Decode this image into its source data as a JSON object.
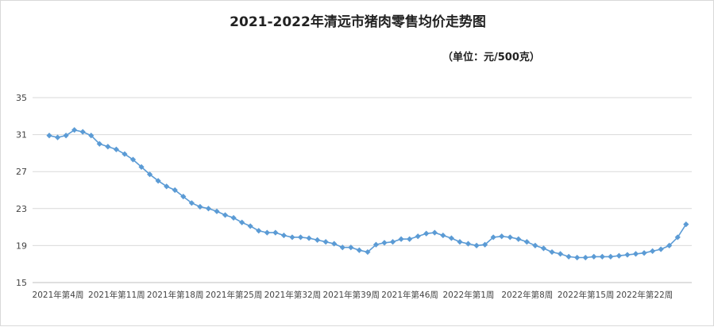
{
  "chart_data": {
    "type": "line",
    "title": "2021-2022年清远市猪肉零售均价走势图",
    "subtitle": "（单位：元/500克）",
    "xlabel": "",
    "ylabel": "",
    "ylim": [
      15,
      35
    ],
    "yticks": [
      "15",
      "19",
      "23",
      "27",
      "31",
      "35"
    ],
    "grid": true,
    "legend": "none",
    "line_color": "#5b9bd5",
    "marker_color": "#5b9bd5",
    "marker": "diamond",
    "x_tick_labels": [
      {
        "index": 0,
        "label": "2021年第4周"
      },
      {
        "index": 7,
        "label": "2021年第11周"
      },
      {
        "index": 14,
        "label": "2021年第18周"
      },
      {
        "index": 21,
        "label": "2021年第25周"
      },
      {
        "index": 28,
        "label": "2021年第32周"
      },
      {
        "index": 35,
        "label": "2021年第39周"
      },
      {
        "index": 42,
        "label": "2021年第46周"
      },
      {
        "index": 49,
        "label": "2022年第1周"
      },
      {
        "index": 56,
        "label": "2022年第8周"
      },
      {
        "index": 63,
        "label": "2022年第15周"
      },
      {
        "index": 70,
        "label": "2022年第22周"
      }
    ],
    "values": [
      30.9,
      30.7,
      30.9,
      31.5,
      31.3,
      30.9,
      30.0,
      29.7,
      29.4,
      28.9,
      28.3,
      27.5,
      26.7,
      26.0,
      25.4,
      25.0,
      24.3,
      23.6,
      23.2,
      23.0,
      22.7,
      22.3,
      22.0,
      21.5,
      21.1,
      20.6,
      20.4,
      20.4,
      20.1,
      19.9,
      19.9,
      19.8,
      19.6,
      19.4,
      19.2,
      18.8,
      18.8,
      18.5,
      18.3,
      19.1,
      19.3,
      19.4,
      19.7,
      19.7,
      20.0,
      20.3,
      20.4,
      20.1,
      19.8,
      19.4,
      19.2,
      19.0,
      19.1,
      19.9,
      20.0,
      19.9,
      19.7,
      19.4,
      19.0,
      18.7,
      18.3,
      18.1,
      17.8,
      17.7,
      17.7,
      17.8,
      17.8,
      17.8,
      17.9,
      18.0,
      18.1,
      18.2,
      18.4,
      18.6,
      19.0,
      19.9,
      21.3
    ]
  }
}
